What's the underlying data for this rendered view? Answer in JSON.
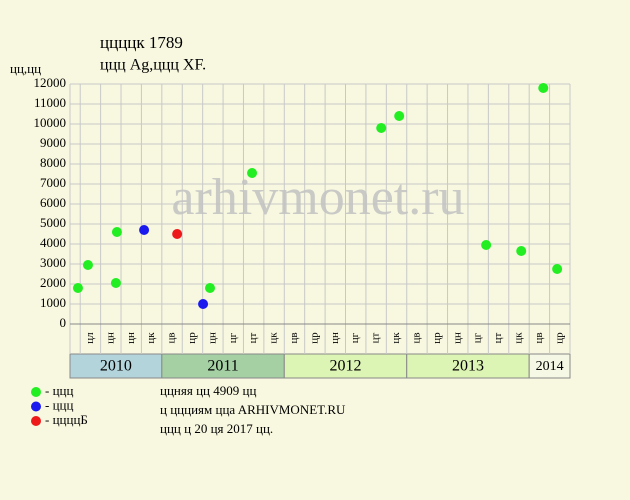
{
  "chart_data": {
    "type": "scatter",
    "title": "ццццк 1789",
    "subtitle": "ццц Ag,ццц XF.",
    "y_label": "цц,цц",
    "watermark": "arhivmonet.ru",
    "categories": [
      "цл",
      "цн",
      "цн",
      "цк",
      "цв",
      "цр",
      "цн",
      "цг",
      "цт",
      "цк",
      "цв",
      "цр",
      "цн",
      "цг",
      "цт",
      "цк",
      "цв",
      "цр",
      "цн",
      "цг",
      "цт",
      "цк",
      "цв",
      "цр"
    ],
    "year_groups": [
      {
        "label": "2010",
        "count": 4,
        "color": "#b4d4dc"
      },
      {
        "label": "2011",
        "count": 6,
        "color": "#a4d0a4"
      },
      {
        "label": "2012",
        "count": 6,
        "color": "#dcf4b4"
      },
      {
        "label": "2013",
        "count": 6,
        "color": "#dcf4b4"
      },
      {
        "label": "2014",
        "count": 2,
        "color": "#f4f8e4"
      }
    ],
    "xlim": [
      0,
      24.5
    ],
    "ylim": [
      0,
      12000
    ],
    "yticks": [
      0,
      1000,
      2000,
      3000,
      4000,
      5000,
      6000,
      7000,
      8000,
      9000,
      10000,
      11000,
      12000
    ],
    "grid": true,
    "series": [
      {
        "name": "- ццц",
        "color": "#22ee22",
        "x": [
          0.39,
          0.88,
          2.25,
          2.3,
          6.86,
          8.92,
          15.25,
          16.13,
          20.39,
          22.11,
          23.19,
          23.87
        ],
        "values": [
          1800,
          2950,
          2050,
          4600,
          1800,
          7550,
          9800,
          10400,
          3950,
          3650,
          11800,
          2750
        ]
      },
      {
        "name": "- ццц",
        "color": "#1a1aee",
        "x": [
          3.63,
          6.52
        ],
        "values": [
          4700,
          1000
        ]
      },
      {
        "name": "- ццццБ",
        "color": "#ee1a1a",
        "x": [
          5.25
        ],
        "values": [
          4500
        ]
      }
    ],
    "notes": [
      "ццняя цц 4909 цц",
      "ц ццциям ццa ARHIVMONET.RU",
      "ццц ц 20 ця 2017 цц."
    ]
  }
}
